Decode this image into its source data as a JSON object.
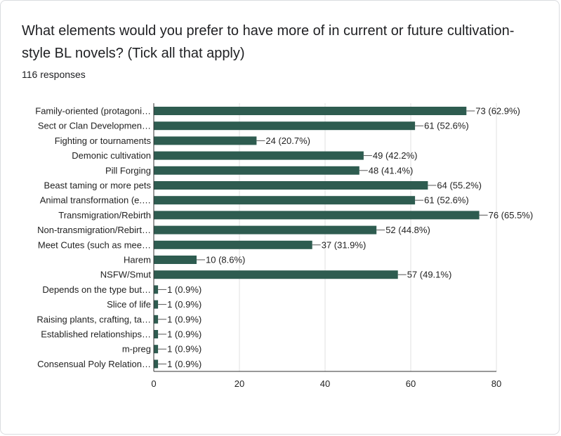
{
  "question": "What elements would you prefer to have more of in current or future cultivation-style BL novels? (Tick all that apply)",
  "responses": "116 responses",
  "colors": {
    "bar": "#2e5c50",
    "grid": "#e0e0e0",
    "axis": "#333333",
    "text": "#202124"
  },
  "chart_data": {
    "type": "bar",
    "orientation": "horizontal",
    "title": "",
    "xlabel": "",
    "ylabel": "",
    "xlim": [
      0,
      80
    ],
    "xticks": [
      "0",
      "20",
      "40",
      "60",
      "80"
    ],
    "grid": true,
    "categories": [
      "Family-oriented (protagoni…",
      "Sect or Clan Developmen…",
      "Fighting or tournaments",
      "Demonic cultivation",
      "Pill Forging",
      "Beast taming or more pets",
      "Animal transformation (e.…",
      "Transmigration/Rebirth",
      "Non-transmigration/Rebirt…",
      "Meet Cutes (such as mee…",
      "Harem",
      "NSFW/Smut",
      "Depends on the type but…",
      "Slice of life",
      "Raising plants, crafting, ta…",
      "Established relationships…",
      "m-preg",
      "Consensual Poly Relation…"
    ],
    "values": [
      73,
      61,
      24,
      49,
      48,
      64,
      61,
      76,
      52,
      37,
      10,
      57,
      1,
      1,
      1,
      1,
      1,
      1
    ],
    "labels": [
      "73 (62.9%)",
      "61 (52.6%)",
      "24 (20.7%)",
      "49 (42.2%)",
      "48 (41.4%)",
      "64 (55.2%)",
      "61 (52.6%)",
      "76 (65.5%)",
      "52 (44.8%)",
      "37 (31.9%)",
      "10 (8.6%)",
      "57 (49.1%)",
      "1 (0.9%)",
      "1 (0.9%)",
      "1 (0.9%)",
      "1 (0.9%)",
      "1 (0.9%)",
      "1 (0.9%)"
    ]
  }
}
